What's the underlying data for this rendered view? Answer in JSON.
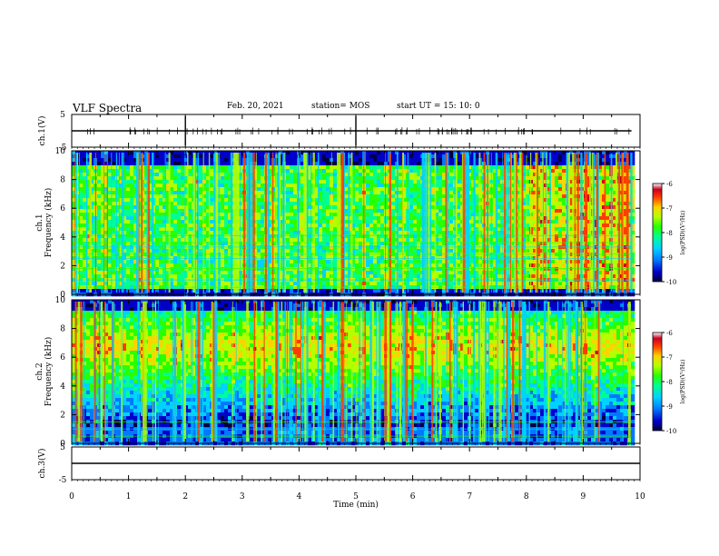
{
  "header": {
    "title": "VLF Spectra",
    "date": "Feb. 20, 2021",
    "station": "station= MOS",
    "start": "start  UT =   15: 10: 0"
  },
  "chart_data": [
    {
      "type": "line",
      "panel": "ch1-waveform",
      "ylabel": "ch.1(V)",
      "ylim": [
        -5,
        5
      ],
      "y_ticks": [
        5,
        -5
      ],
      "series": [
        {
          "x": [
            0,
            1,
            2,
            3,
            4,
            5,
            6,
            7,
            8,
            9,
            9.85
          ],
          "y": [
            0,
            0,
            0,
            0,
            0,
            0,
            0,
            0,
            0,
            0,
            0
          ]
        }
      ]
    },
    {
      "type": "heatmap",
      "panel": "ch1-spectrogram",
      "ylabel_lines": [
        "ch.1",
        "Frequency (kHz)"
      ],
      "ylim": [
        0,
        10
      ],
      "y_ticks": [
        0,
        2,
        4,
        6,
        8,
        10
      ],
      "colorbar": {
        "label": "log(PSD)(V²/Hz)",
        "ticks": [
          -6,
          -7,
          -8,
          -9,
          -10
        ],
        "range": [
          -10,
          -6
        ]
      },
      "strong_band_khz": [
        0.5,
        9.3
      ],
      "line_freqs_khz": [
        0.5,
        1.0,
        1.8,
        2.5,
        2.8,
        3.3,
        3.6,
        4.1
      ]
    },
    {
      "type": "heatmap",
      "panel": "ch2-spectrogram",
      "ylabel_lines": [
        "ch.2",
        "Frequency (kHz)"
      ],
      "ylim": [
        0,
        10
      ],
      "y_ticks": [
        0,
        2,
        4,
        6,
        8,
        10
      ],
      "colorbar": {
        "label": "log(PSD)(V²/Hz)",
        "ticks": [
          -6,
          -7,
          -8,
          -9,
          -10
        ],
        "range": [
          -10,
          -6
        ]
      },
      "strong_band_khz": [
        4.5,
        9.0
      ],
      "line_freqs_khz": [
        0.5,
        1.0,
        1.5
      ]
    },
    {
      "type": "line",
      "panel": "ch3-waveform",
      "ylabel": "ch.3(V)",
      "ylim": [
        -5,
        5
      ],
      "y_ticks": [
        5,
        -5
      ],
      "xlabel": "Time  (min)",
      "xlim": [
        0,
        10
      ],
      "x_ticks": [
        0,
        1,
        2,
        3,
        4,
        5,
        6,
        7,
        8,
        9,
        10
      ],
      "series": [
        {
          "x": [
            0,
            10
          ],
          "y": [
            0,
            0
          ]
        }
      ]
    }
  ],
  "colors": {
    "colormap": [
      "#000040",
      "#0000c8",
      "#0078ff",
      "#00d2ff",
      "#00ff90",
      "#28ff00",
      "#b4ff00",
      "#ffd200",
      "#ff3c00",
      "#c8001e",
      "#ffffff"
    ]
  }
}
